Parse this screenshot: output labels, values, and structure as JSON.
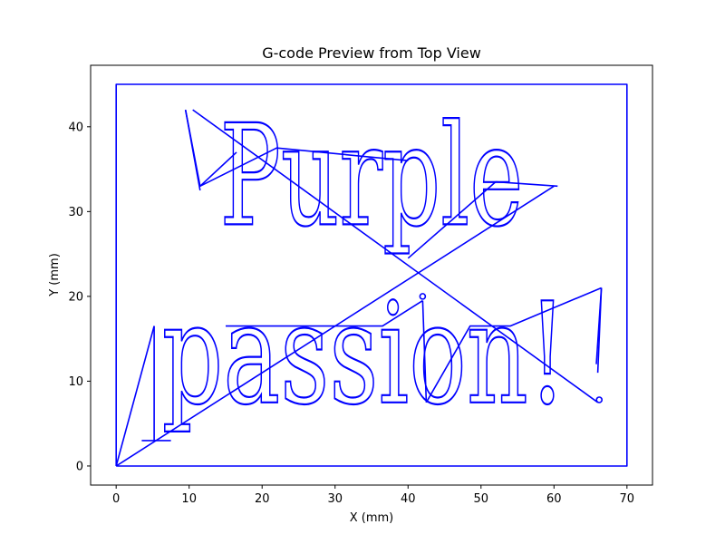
{
  "chart_data": {
    "type": "line",
    "title": "G-code Preview from Top View",
    "xlabel": "X (mm)",
    "ylabel": "Y (mm)",
    "xlim": [
      -3.5,
      73.5
    ],
    "ylim": [
      -2.25,
      47.25
    ],
    "x_ticks": [
      0,
      10,
      20,
      30,
      40,
      50,
      60,
      70
    ],
    "y_ticks": [
      0,
      10,
      20,
      30,
      40
    ],
    "grid": false,
    "line_color": "#0000ff",
    "text_paths": [
      {
        "text": "Purple",
        "x": 35,
        "baseline_y": 28.5,
        "font_size_mm": 16.5,
        "font_family": "serif"
      },
      {
        "text": "passion!",
        "x": 34,
        "baseline_y": 7.5,
        "font_size_mm": 16.5,
        "font_family": "serif"
      }
    ],
    "series": [
      {
        "values": [
          {
            "x": 0,
            "y": 0
          },
          {
            "x": 0,
            "y": 45
          },
          {
            "x": 70,
            "y": 45
          },
          {
            "x": 70,
            "y": 0
          },
          {
            "x": 0,
            "y": 0
          }
        ]
      },
      {
        "values": [
          {
            "x": 0,
            "y": 0
          },
          {
            "x": 5.2,
            "y": 16.5
          }
        ]
      },
      {
        "values": [
          {
            "x": 0,
            "y": 0
          },
          {
            "x": 60,
            "y": 33
          }
        ]
      },
      {
        "values": [
          {
            "x": 9.5,
            "y": 42
          },
          {
            "x": 11.5,
            "y": 33
          },
          {
            "x": 22,
            "y": 37.5
          },
          {
            "x": 40,
            "y": 36
          }
        ]
      },
      {
        "values": [
          {
            "x": 10.5,
            "y": 42
          },
          {
            "x": 66,
            "y": 7.5
          }
        ]
      },
      {
        "values": [
          {
            "x": 11.5,
            "y": 33
          },
          {
            "x": 16.5,
            "y": 37
          }
        ]
      },
      {
        "values": [
          {
            "x": 9.5,
            "y": 42
          },
          {
            "x": 11.5,
            "y": 32.5
          }
        ]
      },
      {
        "values": [
          {
            "x": 40,
            "y": 24.5
          },
          {
            "x": 52,
            "y": 33.5
          },
          {
            "x": 60.5,
            "y": 33
          }
        ]
      },
      {
        "values": [
          {
            "x": 3.5,
            "y": 3
          },
          {
            "x": 7.5,
            "y": 3
          }
        ]
      },
      {
        "values": [
          {
            "x": 5.2,
            "y": 3
          },
          {
            "x": 5.2,
            "y": 16.5
          }
        ]
      },
      {
        "values": [
          {
            "x": 15,
            "y": 16.5
          },
          {
            "x": 36.5,
            "y": 16.5
          },
          {
            "x": 42,
            "y": 19.5
          }
        ]
      },
      {
        "values": [
          {
            "x": 42,
            "y": 19.5
          },
          {
            "x": 42.5,
            "y": 7.5
          }
        ]
      },
      {
        "values": [
          {
            "x": 42.5,
            "y": 7.5
          },
          {
            "x": 48.5,
            "y": 16.5
          },
          {
            "x": 54,
            "y": 16.5
          },
          {
            "x": 66.5,
            "y": 21
          }
        ]
      },
      {
        "values": [
          {
            "x": 66.5,
            "y": 21
          },
          {
            "x": 66,
            "y": 11
          }
        ]
      },
      {
        "values": [
          {
            "x": 65.8,
            "y": 12
          },
          {
            "x": 66.5,
            "y": 21
          }
        ]
      }
    ],
    "markers": [
      {
        "x": 42,
        "y": 20
      },
      {
        "x": 66.2,
        "y": 7.8
      }
    ]
  }
}
